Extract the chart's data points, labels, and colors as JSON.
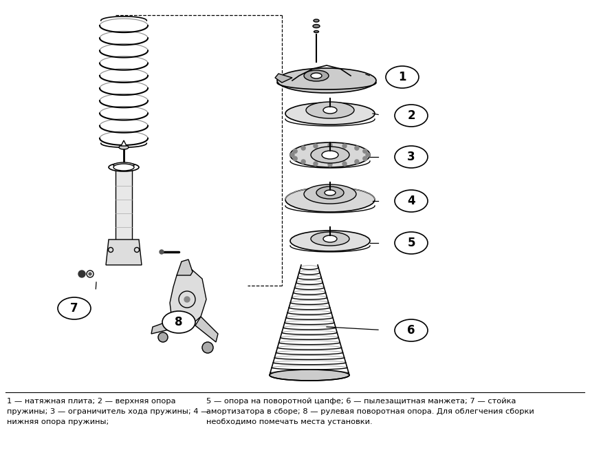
{
  "background_color": "#ffffff",
  "fig_width": 8.58,
  "fig_height": 6.64,
  "dpi": 100,
  "caption_left": "1 — натяжная плита; 2 — верхняя опора\nпружины; 3 — ограничитель хода пружины; 4 —\nнижняя опора пружины;",
  "caption_right": "5 — опора на поворотной цапфе; 6 — пылезащитная манжета; 7 — стойка\nамортизатора в сборе; 8 — рулевая поворотная опора. Для облегчения сборки\nнеобходимо помечать места установки."
}
